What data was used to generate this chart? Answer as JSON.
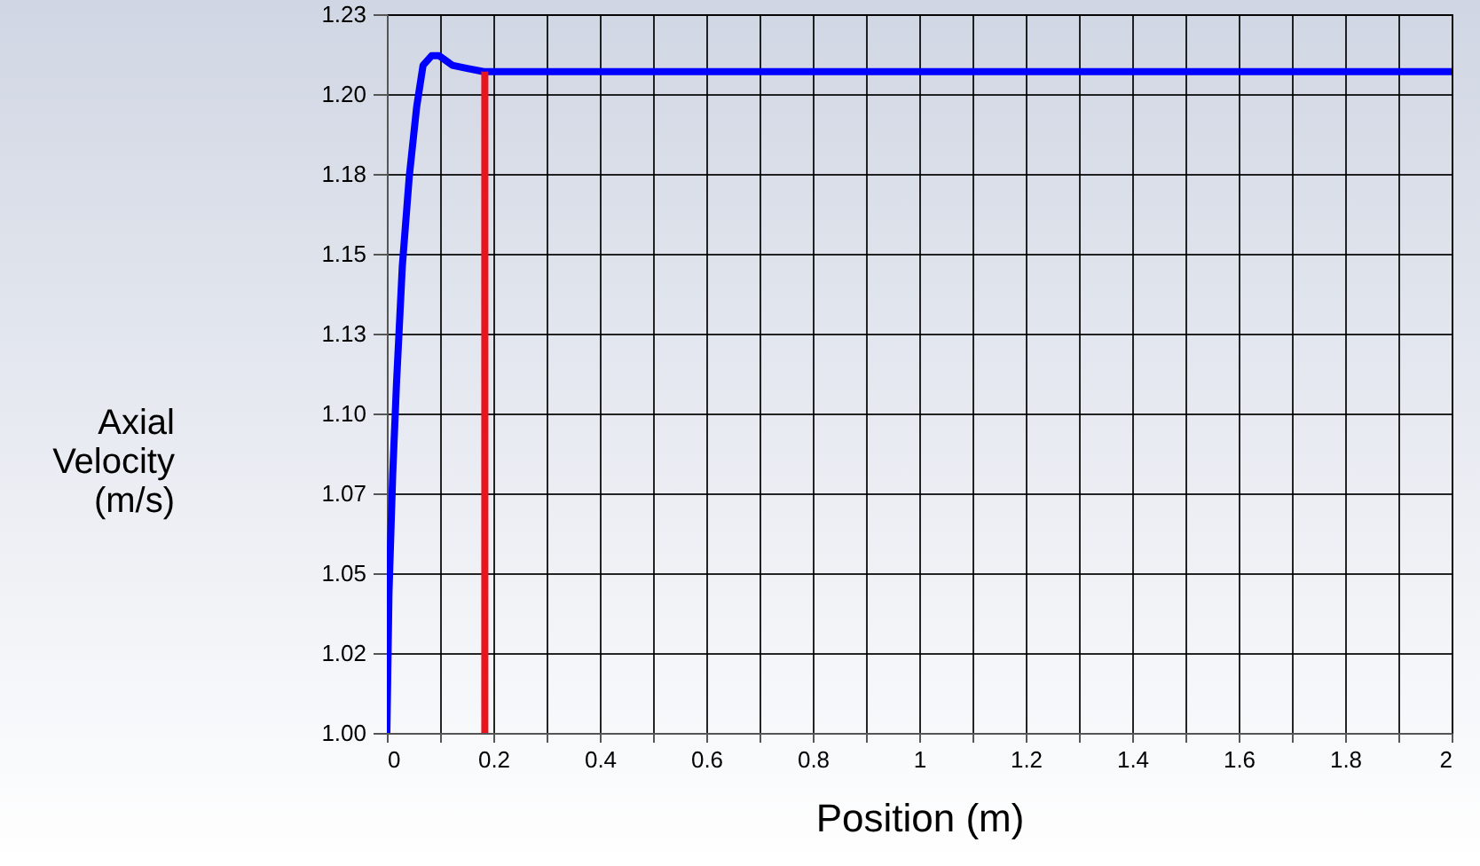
{
  "chart_data": {
    "type": "line",
    "xlabel": "Position (m)",
    "ylabel": "Axial Velocity (m/s)",
    "xlim": [
      0,
      2
    ],
    "ylim": [
      1.0,
      1.225
    ],
    "xticks": [
      0,
      {
        "value": 0.1,
        "label": null
      },
      0.2,
      {
        "value": 0.3,
        "label": null
      },
      0.4,
      {
        "value": 0.5,
        "label": null
      },
      0.6,
      {
        "value": 0.7,
        "label": null
      },
      0.8,
      {
        "value": 0.9,
        "label": null
      },
      1,
      {
        "value": 1.1,
        "label": null
      },
      1.2,
      {
        "value": 1.3,
        "label": null
      },
      1.4,
      {
        "value": 1.5,
        "label": null
      },
      1.6,
      {
        "value": 1.7,
        "label": null
      },
      1.8,
      {
        "value": 1.9,
        "label": null
      },
      2
    ],
    "yticks": [
      {
        "value": 1.0,
        "label": "1.00"
      },
      {
        "value": 1.025,
        "label": "1.02"
      },
      {
        "value": 1.05,
        "label": "1.05"
      },
      {
        "value": 1.075,
        "label": "1.07"
      },
      {
        "value": 1.1,
        "label": "1.10"
      },
      {
        "value": 1.125,
        "label": "1.13"
      },
      {
        "value": 1.15,
        "label": "1.15"
      },
      {
        "value": 1.175,
        "label": "1.18"
      },
      {
        "value": 1.2,
        "label": "1.20"
      },
      {
        "value": 1.225,
        "label": "1.23"
      }
    ],
    "grid": true,
    "line_style": "solid",
    "marker": "none",
    "series": [
      {
        "color": "#0000ff",
        "x": [
          0,
          0.004,
          0.011,
          0.018,
          0.029,
          0.042,
          0.056,
          0.068,
          0.084,
          0.098,
          0.123,
          0.151,
          0.182,
          2
        ],
        "values": [
          1.0,
          1.044,
          1.081,
          1.109,
          1.146,
          1.174,
          1.196,
          1.209,
          1.212,
          1.212,
          1.209,
          1.208,
          1.207,
          1.207
        ]
      },
      {
        "color": "#e8141e",
        "x": [
          0.184,
          0.184
        ],
        "values": [
          1.0,
          1.207
        ]
      }
    ]
  }
}
